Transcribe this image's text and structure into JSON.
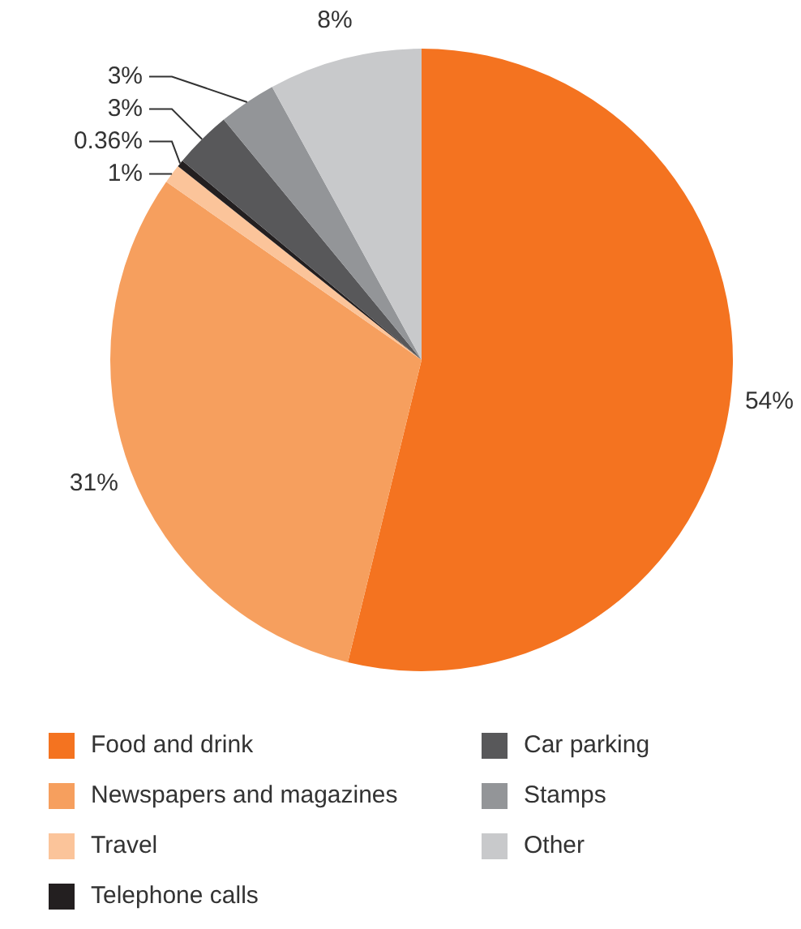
{
  "chart_data": {
    "type": "pie",
    "categories": [
      "Food and drink",
      "Newspapers and magazines",
      "Travel",
      "Telephone calls",
      "Car parking",
      "Stamps",
      "Other"
    ],
    "values": [
      54,
      31,
      1,
      0.36,
      3,
      3,
      8
    ],
    "value_labels": [
      "54%",
      "31%",
      "1%",
      "0.36%",
      "3%",
      "3%",
      "8%"
    ],
    "colors": [
      "#f47320",
      "#f69f5e",
      "#fbc49a",
      "#231f20",
      "#58585a",
      "#939598",
      "#c8c9cb"
    ],
    "legend": "bottom"
  }
}
